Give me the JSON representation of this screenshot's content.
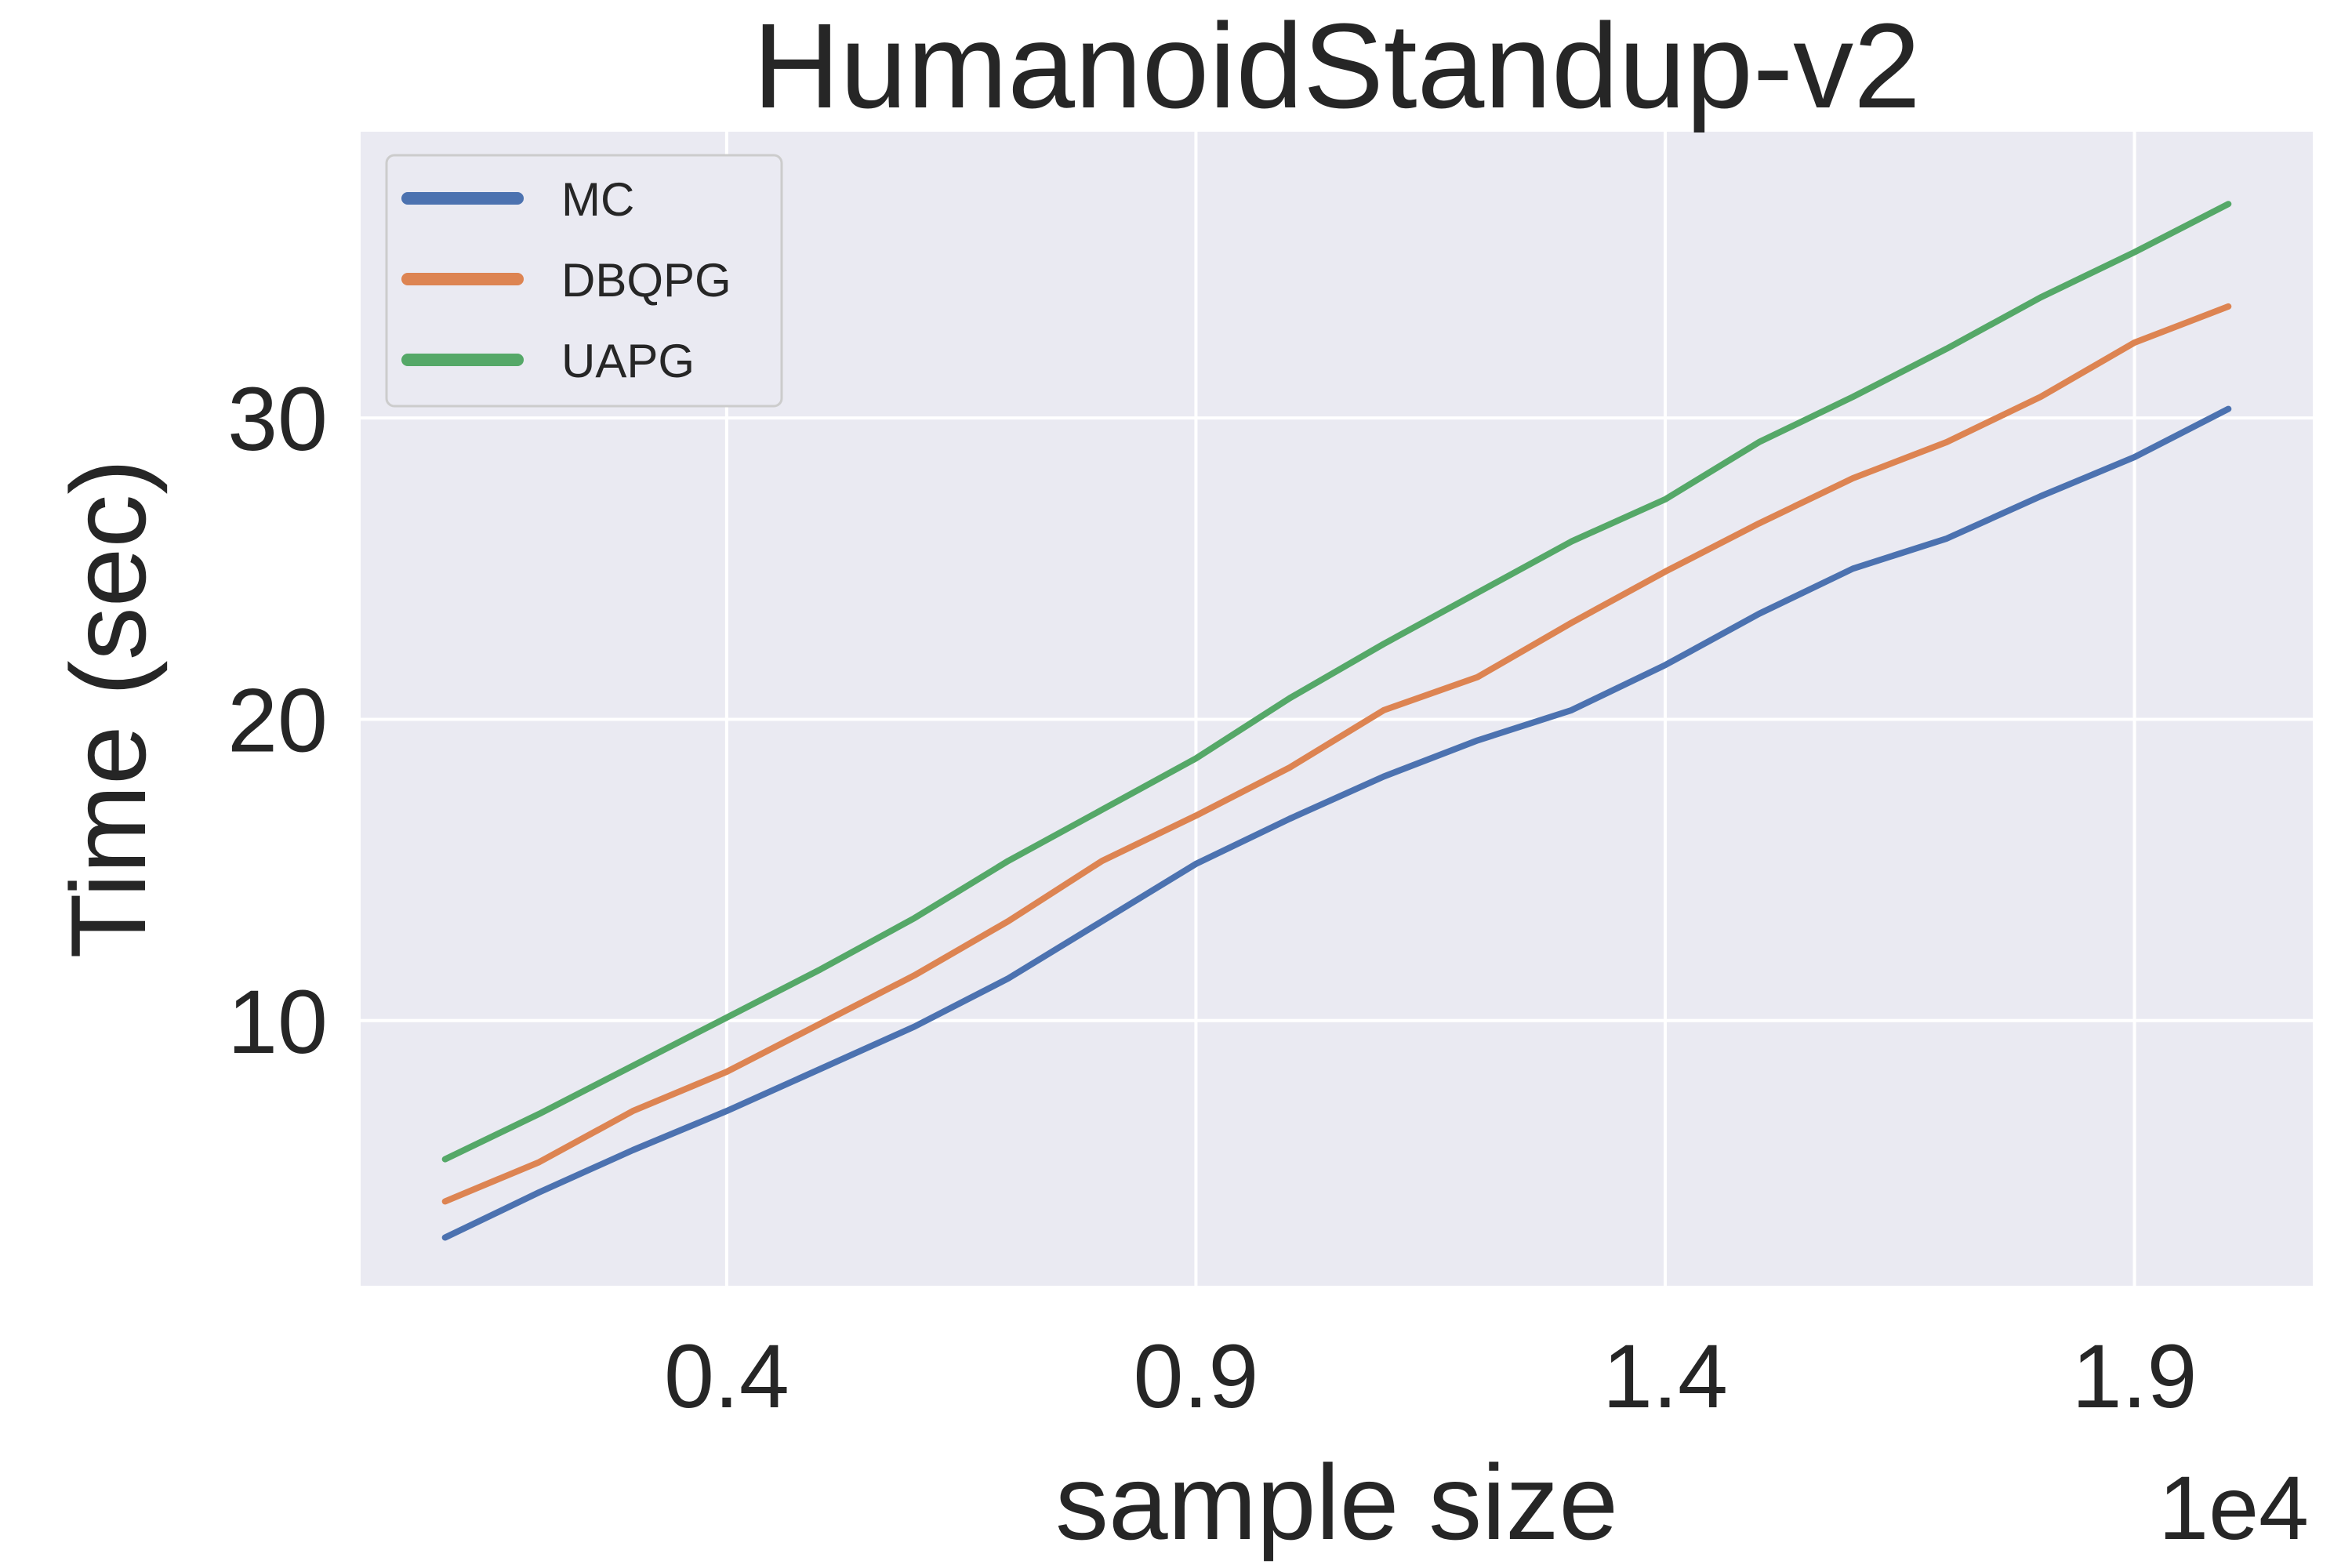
{
  "chart_data": {
    "type": "line",
    "title": "HumanoidStandup-v2",
    "xlabel": "sample size",
    "ylabel": "Time (sec)",
    "x_offset_label": "1e4",
    "x_ticks": [
      0.4,
      0.9,
      1.4,
      1.9
    ],
    "x_tick_labels": [
      "0.4",
      "0.9",
      "1.4",
      "1.9"
    ],
    "y_ticks": [
      10,
      20,
      30
    ],
    "y_tick_labels": [
      "10",
      "20",
      "30"
    ],
    "xlim": [
      0.01,
      2.09
    ],
    "ylim": [
      1.2,
      39.5
    ],
    "grid": true,
    "legend_position": "top-left",
    "x": [
      0.1,
      0.2,
      0.3,
      0.4,
      0.5,
      0.6,
      0.7,
      0.8,
      0.9,
      1.0,
      1.1,
      1.2,
      1.3,
      1.4,
      1.5,
      1.6,
      1.7,
      1.8,
      1.9,
      2.0
    ],
    "series": [
      {
        "name": "MC",
        "color": "#4c72b0",
        "values": [
          2.8,
          4.3,
          5.7,
          7.0,
          8.4,
          9.8,
          11.4,
          13.3,
          15.2,
          16.7,
          18.1,
          19.3,
          20.3,
          21.8,
          23.5,
          25.0,
          26.0,
          27.4,
          28.7,
          30.3
        ]
      },
      {
        "name": "DBQPG",
        "color": "#dd8452",
        "values": [
          4.0,
          5.3,
          7.0,
          8.3,
          9.9,
          11.5,
          13.3,
          15.3,
          16.8,
          18.4,
          20.3,
          21.4,
          23.2,
          24.9,
          26.5,
          28.0,
          29.2,
          30.7,
          32.5,
          33.7
        ]
      },
      {
        "name": "UAPG",
        "color": "#55a868",
        "values": [
          5.4,
          6.9,
          8.5,
          10.1,
          11.7,
          13.4,
          15.3,
          17.0,
          18.7,
          20.7,
          22.5,
          24.2,
          25.9,
          27.3,
          29.2,
          30.7,
          32.3,
          34.0,
          35.5,
          37.1
        ]
      }
    ]
  },
  "style": {
    "plot_background": "#eaeaf2",
    "grid_color": "#ffffff",
    "text_color": "#262626",
    "legend_background": "#eaeaf2",
    "legend_border": "#cccccc"
  }
}
